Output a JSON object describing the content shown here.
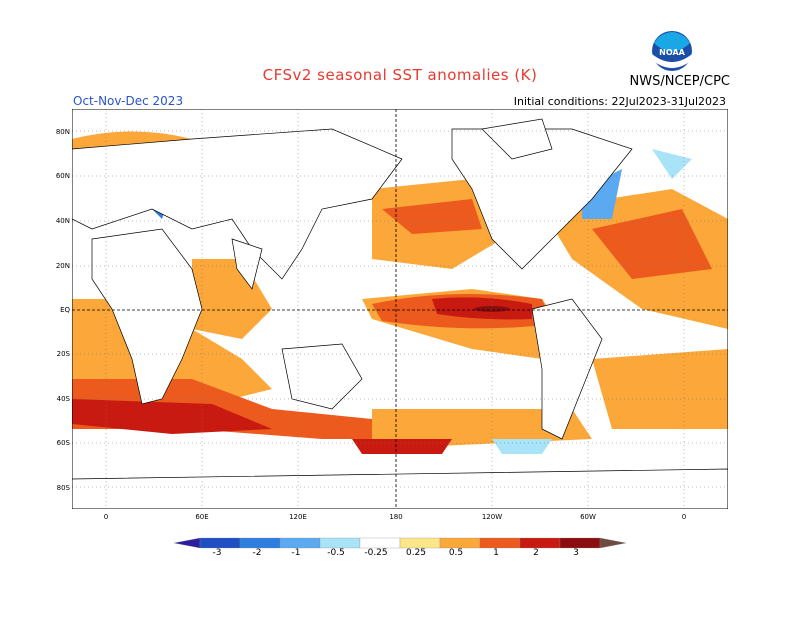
{
  "header": {
    "title": "CFSv2 seasonal SST anomalies (K)",
    "season": "Oct-Nov-Dec 2023",
    "initial_conditions": "Initial conditions: 22Jul2023-31Jul2023",
    "organization": "NWS/NCEP/CPC",
    "logo_text": "NOAA"
  },
  "axes": {
    "lat_labels": [
      "80N",
      "60N",
      "40N",
      "20N",
      "EQ",
      "20S",
      "40S",
      "60S",
      "80S"
    ],
    "lon_labels": [
      "0",
      "60E",
      "120E",
      "180",
      "120W",
      "60W",
      "0"
    ]
  },
  "colorbar": {
    "labels": [
      "-3",
      "-2",
      "-1",
      "-0.5",
      "-0.25",
      "0.25",
      "0.5",
      "1",
      "2",
      "3"
    ],
    "colors": [
      "#2b1fa0",
      "#1f4fc2",
      "#2e7ee0",
      "#5ba9f0",
      "#a8e3f8",
      "#ffffff",
      "#fde58a",
      "#fba73a",
      "#ec5a1e",
      "#c91a12",
      "#8c0d0d",
      "#6e4a3f"
    ]
  }
}
